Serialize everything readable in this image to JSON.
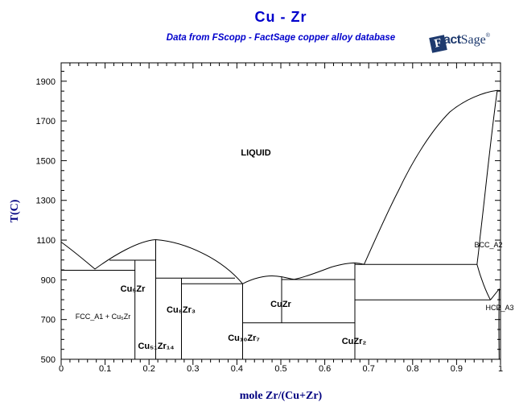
{
  "header": {
    "title": "Cu - Zr",
    "subtitle": "Data from FScopp - FactSage copper alloy database"
  },
  "logo": {
    "f": "F",
    "act": "act",
    "sage": "Sage",
    "mark": "®"
  },
  "colors": {
    "title_blue": "#0000CC",
    "axis_title_navy": "#000080",
    "logo_navy": "#1E3A6E",
    "line_color": "#000000"
  },
  "axes": {
    "x": {
      "title": "mole Zr/(Cu+Zr)",
      "min": 0,
      "max": 1,
      "tick_values": [
        0,
        0.1,
        0.2,
        0.3,
        0.4,
        0.5,
        0.6,
        0.7,
        0.8,
        0.9,
        1
      ],
      "tick_labels": [
        "0",
        "0.1",
        "0.2",
        "0.3",
        "0.4",
        "0.5",
        "0.6",
        "0.7",
        "0.8",
        "0.9",
        "1"
      ],
      "minor_step": 0.02
    },
    "y": {
      "title": "T(C)",
      "min": 500,
      "max": 1990,
      "tick_values": [
        500,
        700,
        900,
        1100,
        1300,
        1500,
        1700,
        1900
      ],
      "tick_labels": [
        "500",
        "700",
        "900",
        "1100",
        "1300",
        "1500",
        "1700",
        "1900"
      ],
      "minor_step": 50
    }
  },
  "chart_data": {
    "type": "line",
    "subtype": "binary-phase-diagram",
    "title": "Cu - Zr",
    "xlabel": "mole Zr/(Cu+Zr)",
    "ylabel": "T(C)",
    "xlim": [
      0,
      1
    ],
    "ylim": [
      500,
      1990
    ],
    "grid": false,
    "labels": {
      "liquid": "LIQUID",
      "fcc_region": "FCC_A1 + Cu₅Zr",
      "cu5zr": "Cu₅Zr",
      "cu51zr14": "Cu₅₁Zr₁₄",
      "cu8zr3": "Cu₈Zr₃",
      "cu10zr7": "Cu₁₀Zr₇",
      "cuzr": "CuZr",
      "cuzr2": "CuZr₂",
      "bcc": "BCC_A2",
      "hcp": "HCP_A3"
    },
    "pure_elements": [
      {
        "element": "Cu",
        "x": 0,
        "melting_T": 1085
      },
      {
        "element": "Zr",
        "x": 1,
        "melting_T": 1855,
        "bcc_to_hcp_T": 855
      }
    ],
    "compounds": [
      {
        "name": "Cu₅Zr",
        "x": 0.167,
        "top_T": 1000
      },
      {
        "name": "Cu₅₁Zr₁₄",
        "x": 0.215,
        "top_T": 1102,
        "melting": "congruent"
      },
      {
        "name": "Cu₈Zr₃",
        "x": 0.273,
        "top_T": 908
      },
      {
        "name": "Cu₁₀Zr₇",
        "x": 0.412,
        "top_T": 880
      },
      {
        "name": "CuZr",
        "x": 0.5,
        "top_T": 915,
        "eutectoid_T": 685
      },
      {
        "name": "CuZr₂",
        "x": 0.667,
        "top_T": 985
      }
    ],
    "invariant_lines": [
      {
        "reaction": "L → FCC_A1 + Cu₅Zr",
        "T": 950,
        "x_range": [
          0,
          0.167
        ]
      },
      {
        "reaction": "L + Cu₅₁Zr₁₄ → Cu₅Zr",
        "T": 1000,
        "x_range": [
          0.11,
          0.215
        ]
      },
      {
        "reaction": "L + Cu₅₁Zr₁₄ → Cu₈Zr₃",
        "T": 908,
        "x_range": [
          0.215,
          0.395
        ]
      },
      {
        "reaction": "L → Cu₈Zr₃ + Cu₁₀Zr₇",
        "T": 880,
        "x_range": [
          0.273,
          0.412
        ]
      },
      {
        "reaction": "L → CuZr + CuZr₂",
        "T": 902,
        "x_range": [
          0.5,
          0.667
        ]
      },
      {
        "reaction": "L → CuZr₂ + BCC_A2",
        "T": 977,
        "x_range": [
          0.667,
          0.946
        ]
      },
      {
        "reaction": "CuZr → Cu₁₀Zr₇ + CuZr₂",
        "T": 685,
        "x_range": [
          0.412,
          0.667
        ]
      },
      {
        "reaction": "BCC_A2 → CuZr₂ + HCP_A3",
        "T": 800,
        "x_range": [
          0.667,
          0.977
        ]
      }
    ],
    "liquidus_points": [
      [
        0,
        1085
      ],
      [
        0.077,
        955
      ],
      [
        0.215,
        1102
      ],
      [
        0.41,
        880
      ],
      [
        0.48,
        920
      ],
      [
        0.53,
        902
      ],
      [
        0.6,
        958
      ],
      [
        0.667,
        985
      ],
      [
        0.69,
        977
      ],
      [
        0.79,
        1440
      ],
      [
        0.88,
        1710
      ],
      [
        0.993,
        1855
      ]
    ],
    "bcc_solidus_points": [
      [
        0.993,
        1855
      ],
      [
        0.963,
        1295
      ],
      [
        0.946,
        977
      ]
    ],
    "bcc_solvus_points": [
      [
        0.946,
        977
      ],
      [
        0.977,
        800
      ]
    ],
    "hcp_boundary_points": [
      [
        0.977,
        800
      ],
      [
        0.997,
        855
      ],
      [
        0.997,
        500
      ]
    ]
  }
}
